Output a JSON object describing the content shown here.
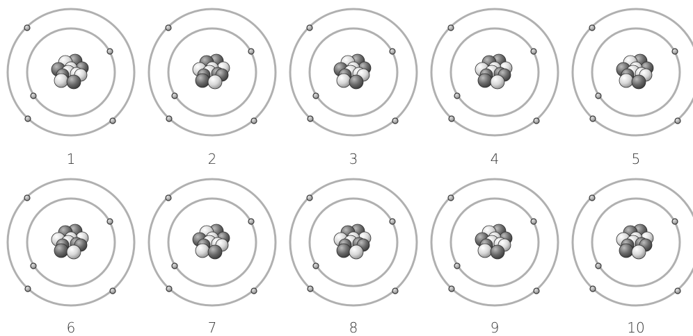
{
  "atoms": [
    {
      "label": "1"
    },
    {
      "label": "2"
    },
    {
      "label": "3"
    },
    {
      "label": "4"
    },
    {
      "label": "5"
    },
    {
      "label": "6"
    },
    {
      "label": "7"
    },
    {
      "label": "8"
    },
    {
      "label": "9"
    },
    {
      "label": "10"
    }
  ],
  "colors": {
    "orbit": "#b0b0b0",
    "electron_fill": "#9a9a9a",
    "electron_stroke": "#3a3a3a",
    "proton": "#6e6e6e",
    "neutron": "#d6d6d6",
    "label": "#333333"
  }
}
